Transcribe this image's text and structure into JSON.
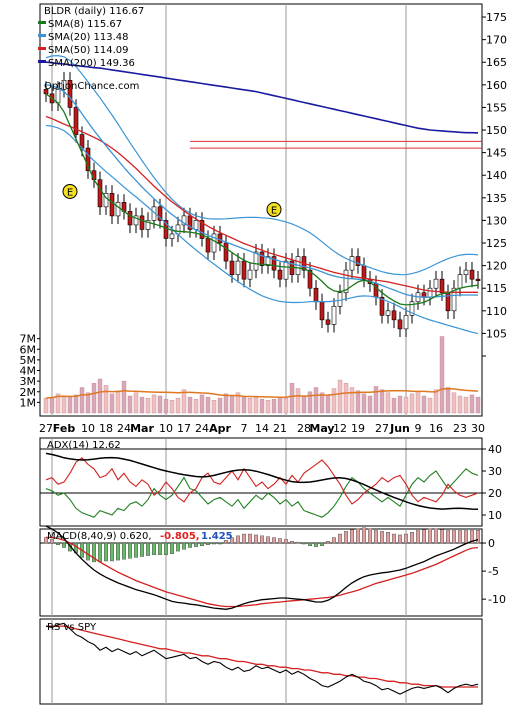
{
  "chart_data": [
    {
      "panel": "price",
      "type": "candlestick",
      "title": "BLDR (daily) 116.67",
      "watermark": "OptionChance.com",
      "legend": [
        {
          "label": "SMA(8) 115.67",
          "color": "#1a7a1a"
        },
        {
          "label": "SMA(20) 113.48",
          "color": "#3a95d8"
        },
        {
          "label": "SMA(50) 114.09",
          "color": "#d42020"
        },
        {
          "label": "SMA(200) 149.36",
          "color": "#1a1aa0"
        }
      ],
      "y_ticks": [
        100,
        105,
        110,
        115,
        120,
        125,
        130,
        135,
        140,
        145,
        150,
        155,
        160,
        165,
        170,
        175
      ],
      "y_tick_labels": [
        "",
        "105",
        "110",
        "115",
        "120",
        "125",
        "130",
        "135",
        "140",
        "145",
        "150",
        "155",
        "160",
        "165",
        "170",
        "175"
      ],
      "ylim": [
        100,
        177
      ],
      "x_tick_labels": [
        "27",
        "Feb",
        "10",
        "18",
        "24",
        "Mar",
        "10",
        "17",
        "24",
        "Apr",
        "7",
        "14",
        "21",
        "28",
        "May",
        "12",
        "19",
        "27",
        "Jun",
        "9",
        "16",
        "23",
        "30"
      ],
      "earnings_marker": "E",
      "horizontal_lines": [
        147.5,
        146.0
      ],
      "closes": [
        158,
        156,
        159,
        161,
        155,
        149,
        146,
        141,
        139,
        133,
        136,
        131,
        134,
        132,
        129,
        131,
        128,
        130,
        133,
        130,
        126,
        127,
        129,
        131,
        128,
        130,
        126,
        123,
        127,
        125,
        121,
        118,
        121,
        117,
        119,
        123,
        120,
        122,
        119,
        117,
        121,
        118,
        122,
        119,
        115,
        112,
        108,
        107,
        111,
        114,
        119,
        122,
        120,
        117,
        116,
        113,
        109,
        110,
        108,
        106,
        109,
        112,
        114,
        113,
        115,
        117,
        114,
        110,
        115,
        118,
        119,
        117,
        116.67
      ],
      "sma8": [
        158,
        157,
        156,
        154,
        151,
        148,
        145,
        142,
        139,
        137,
        135,
        134,
        133,
        132,
        131,
        130.5,
        130,
        129.6,
        129.2,
        128.8,
        128.3,
        127.8,
        127.6,
        127.5,
        127.4,
        127.2,
        126.8,
        126.2,
        125.5,
        124.7,
        123.8,
        122.9,
        122.0,
        121.2,
        120.6,
        120.4,
        120.3,
        120.2,
        120.0,
        119.8,
        119.7,
        119.6,
        119.5,
        119.3,
        118.7,
        117.7,
        116.5,
        115.2,
        114.4,
        114.2,
        114.6,
        115.5,
        116.4,
        116.8,
        116.4,
        115.2,
        114.0,
        113.0,
        112.2,
        111.5,
        111.3,
        111.4,
        111.6,
        111.9,
        112.5,
        113.3,
        113.8,
        113.9,
        114.5,
        115.0,
        115.3,
        115.5,
        115.67
      ],
      "sma20": [
        160,
        159.8,
        159.3,
        158.5,
        157.2,
        155.5,
        153.6,
        151.7,
        149.9,
        148.2,
        146.5,
        144.9,
        143.3,
        141.7,
        140.2,
        138.8,
        137.4,
        136.1,
        134.8,
        133.6,
        132.4,
        131.3,
        130.3,
        129.4,
        128.6,
        127.9,
        127.3,
        126.7,
        126.2,
        125.7,
        125.2,
        124.7,
        124.2,
        123.7,
        123.2,
        122.7,
        122.2,
        121.8,
        121.4,
        121.0,
        120.7,
        120.4,
        120.1,
        119.8,
        119.5,
        119.1,
        118.6,
        118.1,
        117.7,
        117.4,
        117.2,
        117.1,
        117.0,
        116.8,
        116.5,
        116.1,
        115.6,
        115.1,
        114.6,
        114.1,
        113.6,
        113.3,
        113.1,
        113.0,
        113.0,
        113.1,
        113.2,
        113.3,
        113.4,
        113.5,
        113.5,
        113.5,
        113.48
      ],
      "sma50": [
        153,
        152.5,
        151.9,
        151.3,
        150.8,
        150.2,
        149.6,
        149.0,
        148.4,
        147.7,
        146.9,
        146.0,
        145.0,
        143.9,
        142.7,
        141.5,
        140.2,
        138.9,
        137.6,
        136.4,
        135.2,
        134.1,
        133.1,
        132.1,
        131.2,
        130.3,
        129.5,
        128.7,
        128.0,
        127.3,
        126.7,
        126.1,
        125.5,
        124.9,
        124.4,
        123.9,
        123.4,
        122.9,
        122.5,
        122.1,
        121.7,
        121.3,
        120.9,
        120.5,
        120.1,
        119.7,
        119.3,
        118.9,
        118.5,
        118.2,
        117.9,
        117.6,
        117.4,
        117.2,
        117.0,
        116.8,
        116.6,
        116.4,
        116.1,
        115.8,
        115.5,
        115.2,
        114.9,
        114.6,
        114.4,
        114.3,
        114.2,
        114.1,
        114.1,
        114.1,
        114.1,
        114.1,
        114.09
      ],
      "sma200": [
        165.0,
        164.9,
        164.7,
        164.6,
        164.4,
        164.3,
        164.1,
        164.0,
        163.8,
        163.7,
        163.5,
        163.3,
        163.1,
        162.9,
        162.7,
        162.5,
        162.3,
        162.1,
        161.9,
        161.7,
        161.5,
        161.3,
        161.1,
        160.9,
        160.7,
        160.5,
        160.3,
        160.1,
        159.9,
        159.7,
        159.5,
        159.3,
        159.1,
        158.9,
        158.7,
        158.5,
        158.2,
        157.9,
        157.6,
        157.3,
        157.0,
        156.7,
        156.4,
        156.1,
        155.8,
        155.5,
        155.2,
        154.9,
        154.6,
        154.3,
        154.0,
        153.7,
        153.4,
        153.1,
        152.8,
        152.5,
        152.2,
        151.9,
        151.6,
        151.3,
        151.0,
        150.7,
        150.4,
        150.2,
        150.0,
        149.9,
        149.8,
        149.7,
        149.6,
        149.5,
        149.4,
        149.4,
        149.36
      ],
      "volume_axis_labels": [
        "1M",
        "2M",
        "3M",
        "4M",
        "5M",
        "6M",
        "7M"
      ],
      "volume_ylim": [
        0,
        8
      ],
      "volume": [
        1.4,
        1.5,
        1.8,
        1.6,
        1.5,
        1.7,
        2.4,
        1.9,
        2.8,
        3.2,
        2.6,
        1.8,
        2.1,
        3.0,
        1.6,
        1.9,
        1.5,
        1.4,
        1.7,
        1.6,
        1.3,
        1.2,
        1.4,
        2.2,
        1.5,
        1.3,
        1.7,
        1.5,
        1.2,
        1.4,
        1.8,
        1.6,
        1.9,
        1.5,
        1.4,
        1.6,
        1.3,
        1.2,
        1.3,
        1.5,
        1.4,
        2.8,
        2.3,
        1.6,
        2.0,
        2.4,
        1.9,
        1.7,
        2.3,
        3.1,
        2.8,
        2.4,
        2.1,
        1.8,
        1.6,
        2.5,
        2.2,
        1.9,
        1.4,
        1.6,
        1.5,
        1.8,
        2.0,
        1.6,
        1.4,
        2.2,
        7.2,
        2.4,
        1.9,
        1.6,
        1.5,
        1.7,
        1.5
      ]
    },
    {
      "panel": "adx",
      "type": "line",
      "title": "ADX(14) 12.62",
      "y_tick_labels": [
        "40",
        "30",
        "20",
        "10"
      ],
      "y_ticks": [
        40,
        30,
        20,
        10
      ],
      "ylim": [
        5,
        45
      ],
      "adx": [
        38.0,
        37.5,
        36.8,
        36.0,
        35.5,
        35.2,
        35.0,
        35.1,
        35.4,
        35.8,
        36.0,
        36.1,
        35.9,
        35.4,
        34.8,
        34.0,
        33.2,
        32.3,
        31.5,
        30.7,
        30.0,
        29.4,
        28.8,
        28.3,
        27.9,
        27.5,
        27.3,
        27.5,
        28.0,
        28.7,
        29.4,
        30.0,
        30.4,
        30.6,
        30.4,
        29.9,
        29.2,
        28.4,
        27.5,
        26.6,
        25.8,
        25.2,
        24.9,
        24.8,
        25.0,
        25.4,
        25.9,
        26.4,
        26.8,
        26.9,
        26.6,
        25.9,
        24.9,
        23.8,
        22.6,
        21.4,
        20.2,
        19.1,
        18.0,
        17.0,
        16.0,
        15.1,
        14.3,
        13.7,
        13.2,
        12.9,
        12.7,
        12.8,
        13.0,
        13.1,
        12.9,
        12.7,
        12.62
      ],
      "plus_di": [
        22,
        21,
        19,
        20,
        17,
        13,
        11,
        10,
        9,
        12,
        11,
        10,
        13,
        12,
        15,
        16,
        14,
        17,
        22,
        19,
        17,
        19,
        23,
        27,
        22,
        21,
        18,
        15,
        17,
        18,
        16,
        14,
        17,
        13,
        16,
        19,
        17,
        20,
        18,
        15,
        17,
        14,
        16,
        12,
        11,
        10,
        9,
        11,
        14,
        18,
        23,
        27,
        25,
        22,
        20,
        18,
        16,
        18,
        16,
        14,
        19,
        24,
        27,
        25,
        28,
        30,
        26,
        22,
        25,
        28,
        31,
        29,
        28
      ],
      "minus_di": [
        26,
        27,
        24,
        25,
        29,
        34,
        36,
        33,
        31,
        27,
        28,
        31,
        26,
        29,
        25,
        23,
        26,
        24,
        19,
        21,
        25,
        22,
        18,
        16,
        20,
        22,
        27,
        29,
        25,
        24,
        27,
        30,
        26,
        31,
        27,
        23,
        25,
        22,
        24,
        27,
        24,
        28,
        25,
        29,
        31,
        33,
        35,
        32,
        28,
        24,
        19,
        15,
        17,
        20,
        22,
        24,
        27,
        25,
        27,
        28,
        24,
        19,
        16,
        18,
        17,
        16,
        19,
        24,
        21,
        19,
        18,
        19,
        20
      ]
    },
    {
      "panel": "macd",
      "type": "line",
      "title": "MACD(8,40,9) 0.620,",
      "values_text": [
        "-0.805,",
        "1.425"
      ],
      "y_tick_labels": [
        "0",
        "-5",
        "-10"
      ],
      "y_ticks": [
        0,
        -5,
        -10
      ],
      "ylim": [
        -13,
        2.5
      ],
      "macd": [
        3.0,
        2.5,
        1.8,
        0.8,
        -0.5,
        -1.8,
        -2.9,
        -3.9,
        -4.8,
        -5.5,
        -6.1,
        -6.6,
        -7.1,
        -7.5,
        -7.9,
        -8.3,
        -8.6,
        -8.9,
        -9.2,
        -9.6,
        -10.0,
        -10.4,
        -10.6,
        -10.7,
        -10.9,
        -11.0,
        -11.2,
        -11.4,
        -11.6,
        -11.7,
        -11.8,
        -11.6,
        -11.2,
        -10.8,
        -10.5,
        -10.3,
        -10.1,
        -10.0,
        -9.9,
        -9.8,
        -9.8,
        -9.9,
        -10.0,
        -10.1,
        -10.3,
        -10.5,
        -10.5,
        -10.2,
        -9.6,
        -8.8,
        -7.9,
        -7.1,
        -6.5,
        -6.0,
        -5.7,
        -5.5,
        -5.3,
        -5.2,
        -5.0,
        -4.8,
        -4.5,
        -4.1,
        -3.7,
        -3.3,
        -2.8,
        -2.3,
        -1.9,
        -1.5,
        -1.1,
        -0.6,
        -0.1,
        0.3,
        0.62
      ],
      "signal": [
        1.0,
        1.0,
        0.8,
        0.5,
        0.0,
        -0.6,
        -1.3,
        -2.0,
        -2.7,
        -3.4,
        -4.0,
        -4.6,
        -5.2,
        -5.7,
        -6.2,
        -6.7,
        -7.1,
        -7.5,
        -7.9,
        -8.3,
        -8.7,
        -9.0,
        -9.3,
        -9.6,
        -9.9,
        -10.2,
        -10.5,
        -10.8,
        -11.0,
        -11.2,
        -11.3,
        -11.3,
        -11.3,
        -11.2,
        -11.1,
        -11.0,
        -10.8,
        -10.7,
        -10.6,
        -10.5,
        -10.4,
        -10.3,
        -10.2,
        -10.1,
        -10.0,
        -9.9,
        -9.8,
        -9.7,
        -9.5,
        -9.3,
        -9.0,
        -8.7,
        -8.4,
        -8.0,
        -7.6,
        -7.2,
        -6.9,
        -6.6,
        -6.3,
        -6.0,
        -5.7,
        -5.4,
        -5.0,
        -4.6,
        -4.2,
        -3.8,
        -3.3,
        -2.8,
        -2.3,
        -1.8,
        -1.3,
        -0.9,
        -0.805
      ],
      "histogram": [
        0.6,
        0.4,
        -0.2,
        -0.5,
        -0.9,
        -1.1,
        -1.6,
        -1.9,
        -2.1,
        -2.1,
        -2.0,
        -2.0,
        -1.9,
        -1.8,
        -1.7,
        -1.6,
        -1.5,
        -1.4,
        -1.3,
        -1.3,
        -1.3,
        -1.2,
        -0.9,
        -0.7,
        -0.5,
        -0.4,
        -0.3,
        -0.2,
        -0.1,
        -0.1,
        0.3,
        0.6,
        0.8,
        1.0,
        1.0,
        0.9,
        0.8,
        0.7,
        0.6,
        0.5,
        0.4,
        0.2,
        0.1,
        -0.1,
        -0.3,
        -0.4,
        -0.3,
        0.2,
        0.6,
        1.0,
        1.3,
        1.5,
        1.6,
        1.7,
        1.6,
        1.4,
        1.3,
        1.2,
        1.0,
        0.9,
        1.0,
        1.2,
        1.4,
        1.5,
        1.6,
        1.6,
        1.5,
        1.4,
        1.4,
        1.4,
        1.4,
        1.4,
        1.425
      ]
    },
    {
      "panel": "rs",
      "type": "line",
      "title": "RS vs SPY",
      "rs": [
        1.0,
        0.99,
        1.01,
        1.02,
        0.98,
        0.94,
        0.92,
        0.89,
        0.87,
        0.83,
        0.85,
        0.82,
        0.84,
        0.82,
        0.8,
        0.82,
        0.79,
        0.81,
        0.83,
        0.8,
        0.77,
        0.78,
        0.79,
        0.8,
        0.77,
        0.78,
        0.75,
        0.73,
        0.75,
        0.74,
        0.71,
        0.69,
        0.71,
        0.68,
        0.69,
        0.72,
        0.7,
        0.71,
        0.69,
        0.67,
        0.69,
        0.66,
        0.68,
        0.66,
        0.63,
        0.61,
        0.58,
        0.57,
        0.59,
        0.61,
        0.64,
        0.66,
        0.64,
        0.61,
        0.6,
        0.58,
        0.55,
        0.56,
        0.54,
        0.52,
        0.54,
        0.56,
        0.57,
        0.56,
        0.57,
        0.58,
        0.56,
        0.53,
        0.56,
        0.58,
        0.59,
        0.58,
        0.59
      ],
      "rs_ma": [
        1.0,
        1.0,
        1.0,
        1.0,
        0.99,
        0.98,
        0.97,
        0.96,
        0.95,
        0.94,
        0.93,
        0.92,
        0.91,
        0.9,
        0.89,
        0.88,
        0.87,
        0.86,
        0.85,
        0.84,
        0.84,
        0.83,
        0.82,
        0.81,
        0.81,
        0.8,
        0.79,
        0.79,
        0.78,
        0.77,
        0.77,
        0.76,
        0.75,
        0.75,
        0.74,
        0.73,
        0.73,
        0.72,
        0.72,
        0.71,
        0.71,
        0.7,
        0.7,
        0.69,
        0.69,
        0.68,
        0.67,
        0.67,
        0.66,
        0.66,
        0.65,
        0.65,
        0.64,
        0.64,
        0.63,
        0.63,
        0.62,
        0.61,
        0.61,
        0.6,
        0.6,
        0.59,
        0.59,
        0.58,
        0.58,
        0.58,
        0.57,
        0.57,
        0.57,
        0.57,
        0.57,
        0.57,
        0.57
      ],
      "ylim": [
        0.45,
        1.05
      ]
    }
  ]
}
